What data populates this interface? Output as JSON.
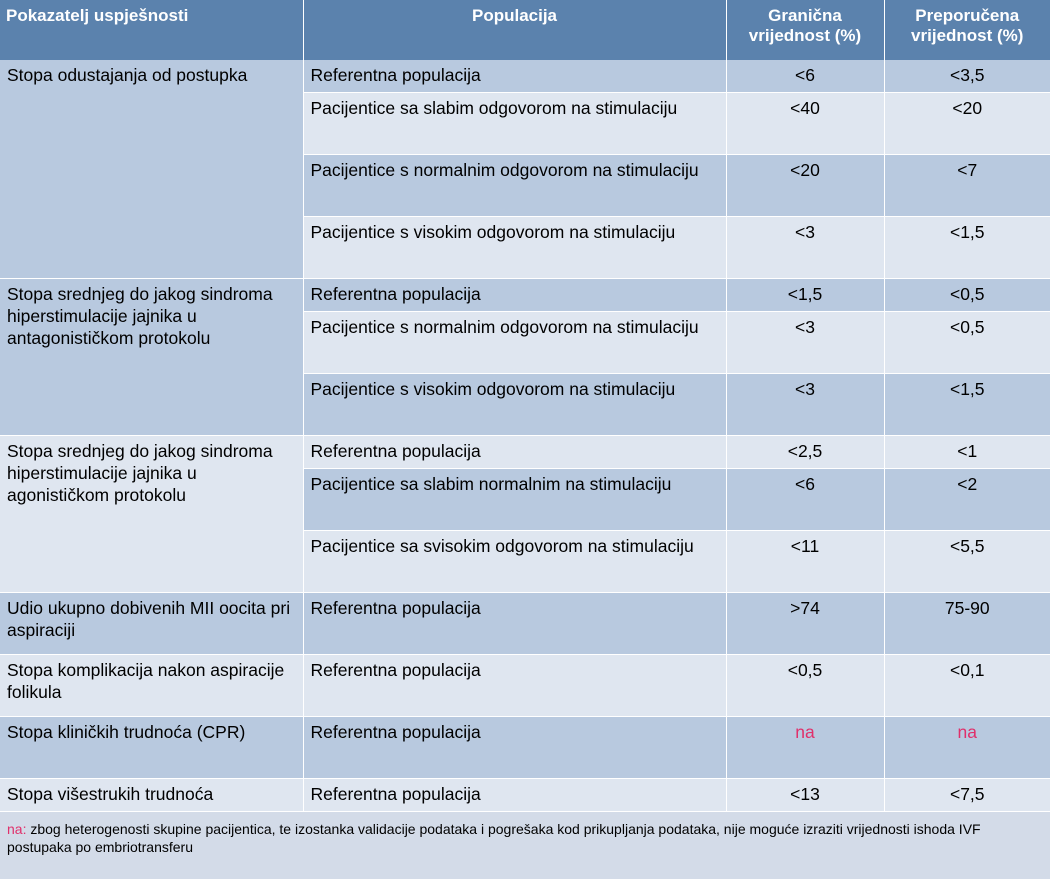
{
  "headers": {
    "indicator": "Pokazatelj uspješnosti",
    "population": "Populacija",
    "threshold_line1": "Granična",
    "threshold_line2": "vrijednost (%)",
    "recommended_line1": "Preporučena",
    "recommended_line2": "vrijednost (%)"
  },
  "groups": [
    {
      "indicator": "Stopa odustajanja od postupka",
      "rows": [
        {
          "population": "Referentna populacija",
          "threshold": "<6",
          "recommended": "<3,5"
        },
        {
          "population": "Pacijentice sa slabim odgovorom na stimulaciju",
          "threshold": "<40",
          "recommended": "<20"
        },
        {
          "population": "Pacijentice s normalnim odgovorom na stimulaciju",
          "threshold": "<20",
          "recommended": "<7"
        },
        {
          "population": "Pacijentice s visokim odgovorom na stimulaciju",
          "threshold": "<3",
          "recommended": "<1,5"
        }
      ]
    },
    {
      "indicator": "Stopa srednjeg do jakog sindroma hiperstimulacije jajnika u antagonističkom protokolu",
      "rows": [
        {
          "population": "Referentna populacija",
          "threshold": "<1,5",
          "recommended": "<0,5"
        },
        {
          "population": "Pacijentice s normalnim odgovorom na stimulaciju",
          "threshold": "<3",
          "recommended": "<0,5"
        },
        {
          "population": "Pacijentice s visokim odgovorom na stimulaciju",
          "threshold": "<3",
          "recommended": "<1,5"
        }
      ]
    },
    {
      "indicator": "Stopa srednjeg do jakog sindroma hiperstimulacije jajnika u agonističkom protokolu",
      "rows": [
        {
          "population": "Referentna populacija",
          "threshold": "<2,5",
          "recommended": "<1"
        },
        {
          "population": "Pacijentice sa slabim normalnim na stimulaciju",
          "threshold": "<6",
          "recommended": "<2"
        },
        {
          "population": "Pacijentice sa svisokim odgovorom na stimulaciju",
          "threshold": "<11",
          "recommended": "<5,5"
        }
      ]
    },
    {
      "indicator": "Udio ukupno dobivenih MII oocita pri aspiraciji",
      "rows": [
        {
          "population": "Referentna populacija",
          "threshold": ">74",
          "recommended": "75-90"
        }
      ]
    },
    {
      "indicator": "Stopa komplikacija nakon aspiracije folikula",
      "rows": [
        {
          "population": "Referentna populacija",
          "threshold": "<0,5",
          "recommended": "<0,1"
        }
      ]
    },
    {
      "indicator": "Stopa kliničkih trudnoća (CPR)",
      "rows": [
        {
          "population": "Referentna populacija",
          "threshold": "na",
          "recommended": "na"
        }
      ]
    },
    {
      "indicator": "Stopa višestrukih trudnoća",
      "rows": [
        {
          "population": "Referentna populacija",
          "threshold": "<13",
          "recommended": "<7,5"
        }
      ]
    }
  ],
  "footnote": {
    "key": "na:",
    "text": " zbog heterogenosti skupine pacijentica, te izostanka validacije podataka i pogrešaka kod prikupljanja podataka, nije moguće izraziti vrijednosti ishoda IVF postupaka po embriotransferu"
  },
  "colors": {
    "header_bg": "#5b82ad",
    "dark_row": "#b8c9df",
    "light_row": "#dfe6f0",
    "na_text": "#e0306b"
  }
}
